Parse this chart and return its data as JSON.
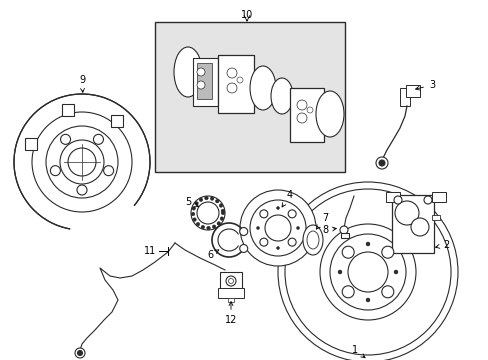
{
  "bg_color": "#ffffff",
  "line_color": "#2a2a2a",
  "box_fill": "#e4e4e4",
  "fig_width": 4.89,
  "fig_height": 3.6,
  "dpi": 100,
  "font_size": 7
}
